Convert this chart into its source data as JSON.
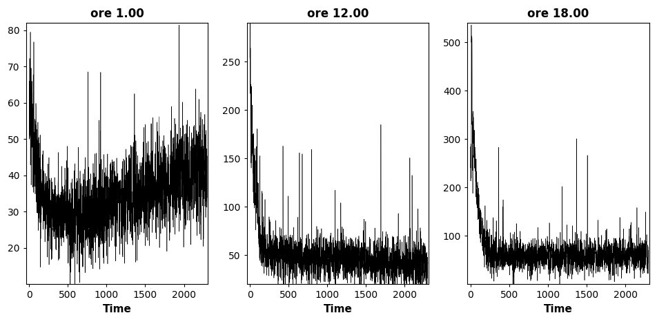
{
  "titles": [
    "ore 1.00",
    "ore 12.00",
    "ore 18.00"
  ],
  "xlabel": "Time",
  "n_points": 2300,
  "series1": {
    "ylim": [
      10,
      82
    ],
    "yticks": [
      20,
      30,
      40,
      50,
      60,
      70,
      80
    ],
    "xticks": [
      0,
      500,
      1000,
      1500,
      2000
    ],
    "seed": 1001
  },
  "series2": {
    "ylim": [
      20,
      290
    ],
    "yticks": [
      50,
      100,
      150,
      200,
      250
    ],
    "xticks": [
      0,
      500,
      1000,
      1500,
      2000
    ],
    "seed": 2002
  },
  "series3": {
    "ylim": [
      0,
      540
    ],
    "yticks": [
      100,
      200,
      300,
      400,
      500
    ],
    "xticks": [
      0,
      500,
      1000,
      1500,
      2000
    ],
    "seed": 3003
  },
  "line_color": "#000000",
  "bg_color": "#ffffff",
  "title_fontsize": 12,
  "axis_fontsize": 11,
  "tick_fontsize": 10
}
